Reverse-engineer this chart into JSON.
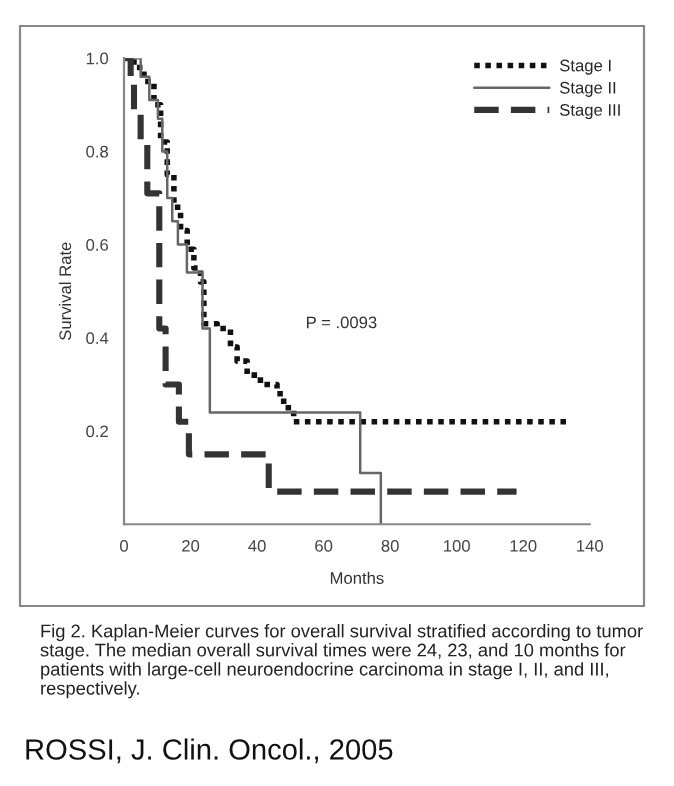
{
  "chart_data": {
    "type": "step",
    "xlabel": "Months",
    "ylabel": "Survival Rate",
    "xlim": [
      0,
      140
    ],
    "xticks": [
      0,
      20,
      40,
      60,
      80,
      100,
      120,
      140
    ],
    "ylim": [
      0,
      1.0
    ],
    "yticks": [
      0.2,
      0.4,
      0.6,
      0.8,
      {
        "value": 1.0,
        "label": "1.0"
      }
    ],
    "grid": false,
    "legend": "top right",
    "marker": "none",
    "series": [
      {
        "name": "Stage I",
        "color": "#111111",
        "line_style": "dotted",
        "x": [
          0,
          3,
          6,
          9,
          11,
          13,
          15,
          17,
          19,
          21,
          23,
          24,
          28,
          32,
          34,
          37,
          41,
          46,
          48,
          51,
          133
        ],
        "values": [
          1.0,
          0.98,
          0.95,
          0.9,
          0.82,
          0.75,
          0.68,
          0.63,
          0.59,
          0.55,
          0.52,
          0.43,
          0.42,
          0.38,
          0.35,
          0.32,
          0.3,
          0.28,
          0.25,
          0.22,
          0.22
        ]
      },
      {
        "name": "Stage II",
        "color": "#666666",
        "line_style": "solid",
        "x": [
          0,
          5,
          7.6,
          10.2,
          11.5,
          13,
          14.5,
          16.2,
          18.9,
          23.6,
          25.8,
          71,
          77.2
        ],
        "values": [
          1.0,
          0.96,
          0.91,
          0.87,
          0.8,
          0.7,
          0.65,
          0.6,
          0.54,
          0.42,
          0.24,
          0.11,
          0.0
        ]
      },
      {
        "name": "Stage III",
        "color": "#333333",
        "line_style": "dashed",
        "x": [
          0,
          2,
          3,
          5,
          7,
          10.6,
          12.5,
          16.5,
          19.5,
          43.5,
          118
        ],
        "values": [
          1.0,
          0.96,
          0.89,
          0.82,
          0.71,
          0.42,
          0.3,
          0.22,
          0.15,
          0.07,
          0.07
        ]
      }
    ],
    "annotations": [
      "P = .0093",
      "Fig 2. Kaplan-Meier curves for overall survival stratified according to tumor stage. The median overall survival times were 24, 23, and 10 months for patients with large-cell neuroendocrine carcinoma in stage I, II, and III, respectively.",
      "ROSSI, J. Clin. Oncol., 2005"
    ]
  }
}
